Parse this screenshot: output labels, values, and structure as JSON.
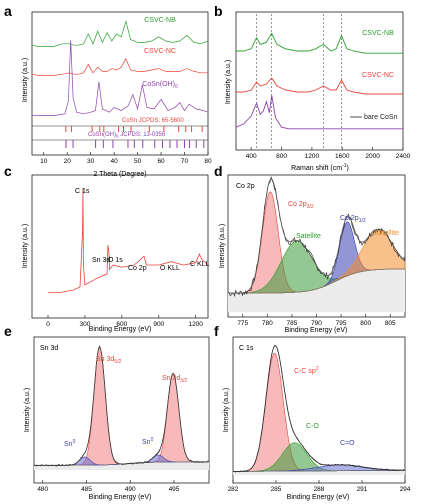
{
  "chart_data": [
    {
      "panel": "a",
      "type": "line",
      "xlabel": "2 Theta (Degree)",
      "ylabel": "Intensity (a.u.)",
      "xlim": [
        5,
        80
      ],
      "xticks": [
        10,
        20,
        30,
        40,
        50,
        60,
        70,
        80
      ],
      "series": [
        {
          "name": "CSVC-NB",
          "color": "#2ca02c",
          "x": [
            5,
            8,
            10,
            14,
            18,
            21,
            23,
            25,
            27,
            29,
            31,
            33,
            35,
            37,
            39,
            41,
            43,
            45,
            47,
            50,
            53,
            56,
            59,
            62,
            65,
            68,
            71,
            74,
            77,
            80
          ],
          "y": [
            0.2,
            0.1,
            0.1,
            0.1,
            0.3,
            0.3,
            0.2,
            0.2,
            0.3,
            1.0,
            0.3,
            1.2,
            0.4,
            1.1,
            0.5,
            1.0,
            0.8,
            1.9,
            0.6,
            0.4,
            0.4,
            0.5,
            0.8,
            0.5,
            0.4,
            0.5,
            0.9,
            0.4,
            0.3,
            0.5
          ]
        },
        {
          "name": "CSVC-NC",
          "color": "#e8443a",
          "x": [
            5,
            8,
            10,
            14,
            18,
            21,
            23,
            25,
            27,
            29,
            31,
            33,
            35,
            37,
            39,
            41,
            43,
            45,
            47,
            50,
            53,
            56,
            59,
            62,
            65,
            68,
            71,
            74,
            77,
            80
          ],
          "y": [
            0.2,
            0.1,
            0.1,
            0.1,
            0.2,
            0.3,
            0.2,
            0.2,
            0.3,
            0.9,
            0.3,
            0.7,
            0.4,
            0.4,
            0.6,
            0.5,
            0.7,
            1.3,
            0.5,
            0.4,
            0.4,
            0.5,
            0.6,
            0.4,
            0.4,
            0.4,
            0.6,
            0.4,
            0.3,
            0.3
          ]
        },
        {
          "name": "CoSn(OH)6",
          "color": "#8e44ad",
          "x": [
            5,
            10,
            15,
            19,
            20.5,
            21.5,
            22.5,
            24,
            27,
            30,
            32,
            33.5,
            35,
            38,
            40,
            43,
            46,
            48,
            50,
            52,
            54,
            57,
            60,
            63,
            66,
            68,
            70,
            72,
            75,
            78,
            80
          ],
          "y": [
            0.1,
            0.1,
            0.1,
            0.2,
            1.0,
            4.8,
            1.2,
            0.3,
            0.2,
            0.3,
            0.4,
            2.2,
            0.5,
            0.3,
            0.6,
            0.4,
            0.7,
            1.4,
            0.5,
            2.0,
            0.6,
            0.5,
            1.1,
            0.4,
            0.6,
            0.9,
            0.4,
            0.8,
            0.5,
            0.4,
            0.3
          ]
        }
      ],
      "references": [
        {
          "label": "CoSn JCPDS: 65-5600",
          "color": "#e8443a",
          "positions": [
            19.4,
            21.8,
            30.6,
            33.9,
            35.6,
            41.9,
            44.0,
            47.2,
            55.0,
            61.2,
            67.5,
            70.5,
            73.0,
            77.5
          ]
        },
        {
          "label": "CoSn(OH)6 JCPDS: 13-0356",
          "color": "#8e44ad",
          "positions": [
            19.5,
            22.5,
            32.1,
            35.4,
            39.5,
            45.9,
            48.6,
            52.2,
            57.3,
            60.6,
            63.8,
            66.8,
            70.0,
            72.1,
            75.0,
            78.2
          ]
        }
      ]
    },
    {
      "panel": "b",
      "type": "line",
      "xlabel": "Raman shift (cm⁻¹)",
      "ylabel": "Intensity (a.u.)",
      "xlim": [
        200,
        2400
      ],
      "xticks": [
        400,
        800,
        1200,
        1600,
        2000,
        2400
      ],
      "reference_lines": [
        470,
        670,
        1350,
        1590
      ],
      "series": [
        {
          "name": "CSVC-NB",
          "color": "#2ca02c",
          "x": [
            200,
            300,
            400,
            470,
            520,
            600,
            670,
            740,
            850,
            1000,
            1150,
            1250,
            1350,
            1450,
            1520,
            1590,
            1660,
            1750,
            1900,
            2100,
            2400
          ],
          "y": [
            0.5,
            0.5,
            0.6,
            1.1,
            0.8,
            0.9,
            1.3,
            0.8,
            0.6,
            0.5,
            0.5,
            0.6,
            0.8,
            0.5,
            0.6,
            1.2,
            0.6,
            0.5,
            0.4,
            0.4,
            0.4
          ]
        },
        {
          "name": "CSVC-NC",
          "color": "#e8443a",
          "x": [
            200,
            300,
            400,
            470,
            520,
            600,
            670,
            740,
            850,
            1000,
            1150,
            1250,
            1350,
            1450,
            1520,
            1590,
            1660,
            1750,
            1900,
            2100,
            2400
          ],
          "y": [
            0.4,
            0.4,
            0.5,
            0.9,
            0.7,
            0.8,
            1.1,
            0.7,
            0.5,
            0.4,
            0.4,
            0.5,
            0.7,
            0.5,
            0.5,
            1.0,
            0.5,
            0.4,
            0.3,
            0.3,
            0.3
          ]
        },
        {
          "name": "bare CoSn",
          "color": "#8e44ad",
          "x": [
            200,
            300,
            400,
            470,
            520,
            560,
            600,
            640,
            670,
            720,
            800,
            900,
            1100,
            1400,
            1700,
            2000,
            2400
          ],
          "y": [
            0.3,
            0.5,
            1.0,
            1.8,
            1.1,
            1.3,
            1.9,
            1.2,
            2.3,
            0.9,
            0.3,
            0.2,
            0.2,
            0.2,
            0.2,
            0.2,
            0.2
          ]
        }
      ]
    },
    {
      "panel": "c",
      "type": "line",
      "xlabel": "Binding Energy (eV)",
      "ylabel": "Intensity (a.u.)",
      "xlim": [
        0,
        1300
      ],
      "xticks": [
        0,
        300,
        600,
        900,
        1200
      ],
      "series": [
        {
          "name": "survey",
          "color": "#e8443a",
          "x": [
            0,
            100,
            200,
            260,
            280,
            284,
            288,
            300,
            400,
            480,
            487,
            495,
            500,
            530,
            600,
            700,
            780,
            795,
            800,
            900,
            1000,
            1100,
            1200,
            1230,
            1250,
            1300
          ],
          "y": [
            0.05,
            0.05,
            0.07,
            0.1,
            0.6,
            1.0,
            0.3,
            0.12,
            0.18,
            0.22,
            0.48,
            0.42,
            0.26,
            0.3,
            0.28,
            0.3,
            0.38,
            0.32,
            0.3,
            0.3,
            0.33,
            0.3,
            0.32,
            0.4,
            0.35,
            0.3
          ]
        }
      ],
      "annotations": [
        "C 1s",
        "Sn 3d",
        "O 1s",
        "Co 2p",
        "O KLL",
        "C KLL"
      ]
    },
    {
      "panel": "d",
      "type": "area",
      "title": "Co 2p",
      "xlabel": "Binding Energy (eV)",
      "ylabel": "Intensity (a.u.)",
      "xlim": [
        772,
        808
      ],
      "xticks": [
        775,
        780,
        785,
        790,
        795,
        800,
        805
      ],
      "peaks": [
        {
          "label": "Co 2p3/2",
          "color": "#e8443a",
          "center": 780.6,
          "height": 0.75
        },
        {
          "label": "Satellite",
          "color": "#2ca02c",
          "center": 786,
          "height": 0.38
        },
        {
          "label": "Co 2p1/2",
          "color": "#3b3fb0",
          "center": 796.2,
          "height": 0.4
        },
        {
          "label": "Satellite",
          "color": "#f28e2b",
          "center": 802.5,
          "height": 0.3
        }
      ]
    },
    {
      "panel": "e",
      "type": "area",
      "title": "Sn 3d",
      "xlabel": "Binding Energy (eV)",
      "ylabel": "Intensity (a.u.)",
      "xlim": [
        479,
        499
      ],
      "xticks": [
        480,
        485,
        490,
        495
      ],
      "peaks": [
        {
          "label": "Sn 3d5/2",
          "color": "#e8443a",
          "center": 486.5,
          "height": 1.0
        },
        {
          "label": "Sn 3d3/2",
          "color": "#e8443a",
          "center": 494.9,
          "height": 0.75
        },
        {
          "label": "Sn⁰",
          "color": "#3b3fb0",
          "center": 484.8,
          "height": 0.07
        },
        {
          "label": "Sn⁰",
          "color": "#3b3fb0",
          "center": 493.2,
          "height": 0.06
        }
      ]
    },
    {
      "panel": "f",
      "type": "area",
      "title": "C 1s",
      "xlabel": "Binding Energy (eV)",
      "ylabel": "Intensity (a.u.)",
      "xlim": [
        282,
        294
      ],
      "xticks": [
        282,
        285,
        288,
        291,
        294
      ],
      "peaks": [
        {
          "label": "C-C sp²",
          "color": "#e8443a",
          "center": 284.9,
          "height": 1.0
        },
        {
          "label": "C-O",
          "color": "#2ca02c",
          "center": 286.3,
          "height": 0.24
        },
        {
          "label": "C=O",
          "color": "#3b3fb0",
          "center": 289.5,
          "height": 0.05
        }
      ]
    }
  ],
  "panel_letters": [
    "a",
    "b",
    "c",
    "d",
    "e",
    "f"
  ],
  "panel_a": {
    "xlabel": "2 Theta (Degree)",
    "ylabel": "Intensity (a.u.)",
    "ticks": [
      "10",
      "20",
      "30",
      "40",
      "50",
      "60",
      "70",
      "80"
    ],
    "legend_nb": "CSVC-NB",
    "legend_nc": "CSVC-NC",
    "legend_oh": "CoSn(OH)",
    "legend_oh_sub": "6",
    "ref1": "CoSn JCPDS: 65-5600",
    "ref2": "CoSn(OH)",
    "ref2_sub": "6",
    "ref2_tail": " JCPDS: 13-0356"
  },
  "panel_b": {
    "xlabel": "Raman shift (cm",
    "xlabel_sup": "-1",
    "xlabel_tail": ")",
    "ylabel": "Intensity (a.u.)",
    "ticks": [
      "400",
      "800",
      "1200",
      "1600",
      "2000",
      "2400"
    ],
    "legend_nb": "CSVC-NB",
    "legend_nc": "CSVC-NC",
    "legend_bare": "bare CoSn"
  },
  "panel_c": {
    "xlabel": "Binding Energy (eV)",
    "ylabel": "Intensity (a.u.)",
    "ticks": [
      "0",
      "300",
      "600",
      "900",
      "1200"
    ],
    "c1s": "C 1s",
    "sn3d": "Sn 3d",
    "o1s": "O 1s",
    "co2p": "Co 2p",
    "okll": "O KLL",
    "ckll": "C KLL"
  },
  "panel_d": {
    "title": "Co 2p",
    "xlabel": "Binding Energy (eV)",
    "ylabel": "Intensity (a.u.)",
    "ticks": [
      "775",
      "780",
      "785",
      "790",
      "795",
      "800",
      "805"
    ],
    "co32": "Co 2p",
    "co32_sub": "3/2",
    "co12": "Co 2p",
    "co12_sub": "1/2",
    "sat1": "Satellite",
    "sat2": "Satellite"
  },
  "panel_e": {
    "title": "Sn 3d",
    "xlabel": "Binding Energy (eV)",
    "ylabel": "Intensity (a.u.)",
    "ticks": [
      "480",
      "485",
      "490",
      "495"
    ],
    "sn52": "Sn 3d",
    "sn52_sub": "5/2",
    "sn32": "Sn 3d",
    "sn32_sub": "3/2",
    "sn0a": "Sn",
    "sn0a_sup": "0",
    "sn0b": "Sn",
    "sn0b_sup": "0"
  },
  "panel_f": {
    "title": "C 1s",
    "xlabel": "Binding Energy (eV)",
    "ylabel": "Intensity (a.u.)",
    "ticks": [
      "282",
      "285",
      "288",
      "291",
      "294"
    ],
    "ccsp": "C-C sp",
    "ccsp_sup": "2",
    "co": "C-O",
    "cdo": "C=O"
  }
}
